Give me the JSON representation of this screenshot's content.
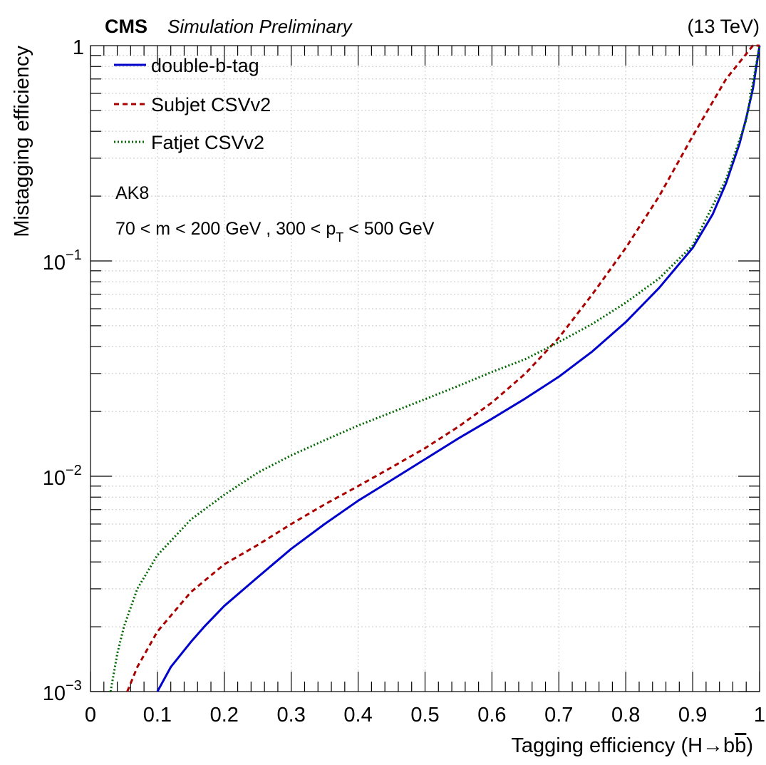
{
  "header": {
    "experiment": "CMS",
    "qualifier": "Simulation Preliminary",
    "energy": "(13 TeV)"
  },
  "annotations": {
    "jet_type": "AK8",
    "cuts_prefix": "70 < m < 200 GeV , 300 < p",
    "cuts_subscript": "T",
    "cuts_suffix": " < 500 GeV"
  },
  "chart_data": {
    "type": "line",
    "xlabel": "Tagging efficiency (H→b̅b)",
    "xlabel_main": "Tagging efficiency (H→b",
    "xlabel_bbar": "b",
    "xlabel_end": ")",
    "ylabel": "Mistagging efficiency",
    "xlim": [
      0,
      1
    ],
    "ylim": [
      0.001,
      1
    ],
    "yscale": "log",
    "grid": true,
    "legend_position": "top-left",
    "x_ticks": [
      "0",
      "0.1",
      "0.2",
      "0.3",
      "0.4",
      "0.5",
      "0.6",
      "0.7",
      "0.8",
      "0.9",
      "1"
    ],
    "y_ticks": [
      {
        "value": 1,
        "base": "1",
        "exp": ""
      },
      {
        "value": 0.1,
        "base": "10",
        "exp": "−1"
      },
      {
        "value": 0.01,
        "base": "10",
        "exp": "−2"
      },
      {
        "value": 0.001,
        "base": "10",
        "exp": "−3"
      }
    ],
    "series": [
      {
        "name": "double-b-tag",
        "color": "#0000cc",
        "style": "solid",
        "x": [
          0.1,
          0.12,
          0.15,
          0.17,
          0.2,
          0.25,
          0.3,
          0.35,
          0.4,
          0.45,
          0.5,
          0.55,
          0.6,
          0.65,
          0.7,
          0.75,
          0.8,
          0.85,
          0.9,
          0.93,
          0.95,
          0.97,
          0.98,
          0.99,
          1.0
        ],
        "y": [
          0.001,
          0.0013,
          0.0017,
          0.002,
          0.0025,
          0.0034,
          0.0046,
          0.006,
          0.0077,
          0.0096,
          0.012,
          0.015,
          0.0185,
          0.023,
          0.029,
          0.038,
          0.052,
          0.075,
          0.115,
          0.165,
          0.23,
          0.35,
          0.46,
          0.63,
          1.0
        ]
      },
      {
        "name": "Subjet CSVv2",
        "color": "#aa0000",
        "style": "dashed",
        "x": [
          0.055,
          0.07,
          0.1,
          0.15,
          0.2,
          0.25,
          0.3,
          0.35,
          0.4,
          0.45,
          0.5,
          0.55,
          0.6,
          0.65,
          0.7,
          0.75,
          0.8,
          0.85,
          0.9,
          0.95,
          0.99,
          1.0
        ],
        "y": [
          0.001,
          0.0013,
          0.0019,
          0.0029,
          0.0039,
          0.0048,
          0.006,
          0.0074,
          0.009,
          0.011,
          0.0135,
          0.017,
          0.022,
          0.03,
          0.044,
          0.07,
          0.115,
          0.2,
          0.38,
          0.7,
          1.0,
          1.0
        ]
      },
      {
        "name": "Fatjet CSVv2",
        "color": "#006600",
        "style": "dotted",
        "x": [
          0.03,
          0.04,
          0.05,
          0.07,
          0.1,
          0.15,
          0.2,
          0.25,
          0.3,
          0.35,
          0.4,
          0.45,
          0.5,
          0.55,
          0.6,
          0.65,
          0.7,
          0.75,
          0.8,
          0.85,
          0.9,
          0.95,
          0.98,
          1.0
        ],
        "y": [
          0.001,
          0.0015,
          0.002,
          0.003,
          0.0043,
          0.0063,
          0.0082,
          0.0104,
          0.0125,
          0.0147,
          0.0172,
          0.0198,
          0.0228,
          0.0263,
          0.0305,
          0.035,
          0.042,
          0.051,
          0.064,
          0.083,
          0.118,
          0.24,
          0.45,
          1.0
        ]
      }
    ]
  }
}
